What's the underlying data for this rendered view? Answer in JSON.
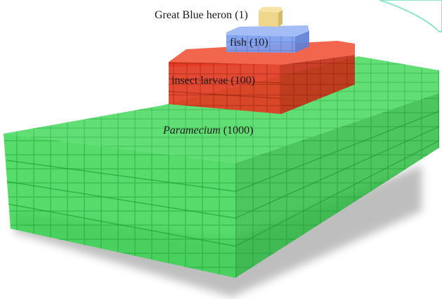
{
  "diagram": {
    "type": "ecological-pyramid-of-numbers",
    "levels": [
      {
        "id": "producer",
        "name": "Paramecium",
        "name_italic": true,
        "count_label": "(1000)",
        "count": 1000,
        "color": "#2ecc40"
      },
      {
        "id": "primary-consumer",
        "name": "insect larvae",
        "name_italic": false,
        "count_label": "(100)",
        "count": 100,
        "color": "#e8321e"
      },
      {
        "id": "secondary-consumer",
        "name": "fish",
        "name_italic": false,
        "count_label": "(10)",
        "count": 10,
        "color": "#6b8fe8"
      },
      {
        "id": "tertiary-consumer",
        "name": "Great Blue heron",
        "name_italic": false,
        "count_label": "(1)",
        "count": 1,
        "color": "#f2d98a"
      }
    ],
    "colors": {
      "producer_front": "#2fd44a",
      "producer_top": "#52e066",
      "producer_side": "#22a836",
      "larvae_front": "#e23a22",
      "larvae_top": "#f0553a",
      "larvae_side": "#b22a14",
      "fish_front": "#7d9ef0",
      "fish_top": "#9bb6f5",
      "heron_front": "#f0d68a",
      "shadow": "#9a9a9a",
      "leaf_outline": "#8ee8c8"
    }
  }
}
